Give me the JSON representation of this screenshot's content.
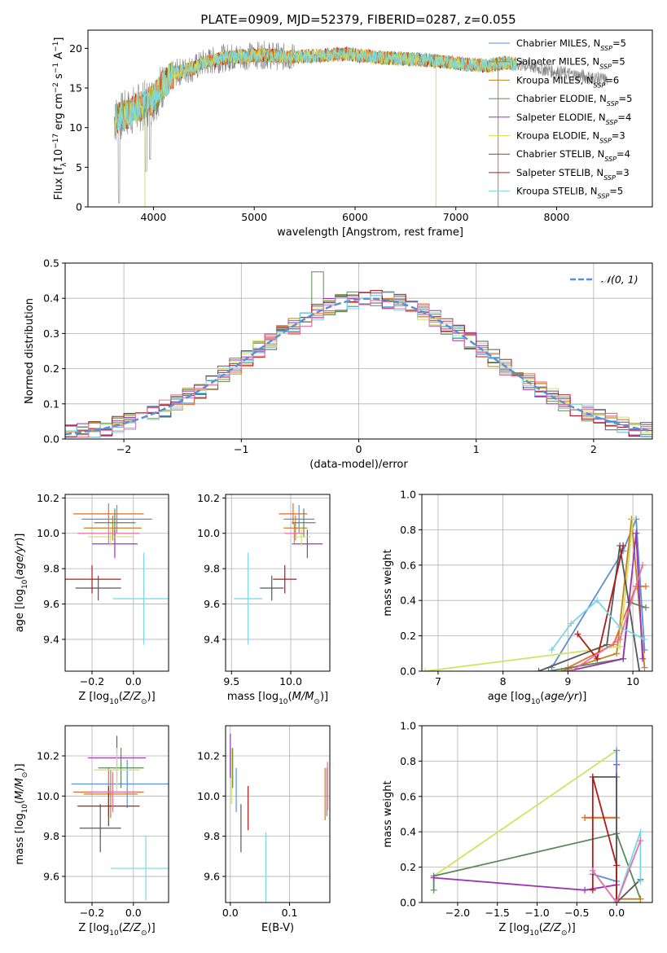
{
  "title": "PLATE=0909, MJD=52379, FIBERID=0287, z=0.055",
  "colors": {
    "Chabrier MILES": "#5b8fd6",
    "Salpeter MILES": "#e76a25",
    "Kroupa MILES": "#c6801c",
    "Chabrier ELODIE": "#5a8a5c",
    "Salpeter ELODIE": "#9a34b6",
    "Kroupa ELODIE": "#cfe35c",
    "Chabrier STELIB": "#585858",
    "Salpeter STELIB": "#b01a1a",
    "Kroupa STELIB": "#78d8e2",
    "pink": "#e870a8",
    "spectrum": "#808080",
    "gaussian": "#5b8fd6"
  },
  "chart_data": [
    {
      "type": "line",
      "name": "spectrum",
      "xlabel": "wavelength [Angstrom, rest frame]",
      "ylabel": "Flux [f_λ10^-17 erg cm^-2 s^-1 A^-1]",
      "xlim": [
        3350,
        8950
      ],
      "ylim": [
        0,
        22.3
      ],
      "xticks": [
        4000,
        5000,
        6000,
        7000,
        8000
      ],
      "yticks": [
        0,
        5,
        10,
        15,
        20
      ],
      "legend_position": "right",
      "legend": [
        {
          "name": "Chabrier MILES",
          "nssp": "5"
        },
        {
          "name": "Salpeter MILES",
          "nssp": "5"
        },
        {
          "name": "Kroupa MILES",
          "nssp": "6"
        },
        {
          "name": "Chabrier ELODIE",
          "nssp": "5"
        },
        {
          "name": "Salpeter ELODIE",
          "nssp": "4"
        },
        {
          "name": "Kroupa ELODIE",
          "nssp": "3"
        },
        {
          "name": "Chabrier STELIB",
          "nssp": "4"
        },
        {
          "name": "Salpeter STELIB",
          "nssp": "3"
        },
        {
          "name": "Kroupa STELIB",
          "nssp": "5"
        }
      ],
      "continuum": {
        "x": [
          3610,
          3700,
          3800,
          3900,
          4000,
          4100,
          4200,
          4300,
          4400,
          4500,
          4700,
          4900,
          5100,
          5300,
          5500,
          5700,
          5900,
          6100,
          6300,
          6500,
          6700,
          6900,
          7100,
          7300,
          7500,
          7700,
          7900,
          8100,
          8300,
          8500
        ],
        "y": [
          11.0,
          11.5,
          12.2,
          12.8,
          13.6,
          15.5,
          16.8,
          17.2,
          17.5,
          18.2,
          18.8,
          19.0,
          19.2,
          18.9,
          19.0,
          19.1,
          19.3,
          19.0,
          18.8,
          18.7,
          18.5,
          18.3,
          18.0,
          17.8,
          18.2,
          17.8,
          17.3,
          16.8,
          16.4,
          16.0
        ]
      },
      "model_ranges": [
        3620,
        7600
      ]
    },
    {
      "type": "bar",
      "name": "residuals",
      "xlabel": "(data-model)/error",
      "ylabel": "Normed distribution",
      "xlim": [
        -2.5,
        2.5
      ],
      "ylim": [
        0,
        0.5
      ],
      "xticks": [
        -2,
        -1,
        0,
        1,
        2
      ],
      "yticks": [
        0.0,
        0.1,
        0.2,
        0.3,
        0.4,
        0.5
      ],
      "legend_label": "𝒩(0, 1)",
      "bin_width": 0.1,
      "bin_start": -2.5,
      "gaussian": {
        "mean": 0.1,
        "sigma": 1.0
      }
    },
    {
      "type": "scatter",
      "name": "age-vs-Z",
      "xlabel": "Z [log10(Z/Z⊙)]",
      "ylabel": "age  [log10(age/yr)]",
      "xlim": [
        -0.33,
        0.17
      ],
      "ylim": [
        9.22,
        10.22
      ],
      "xticks": [
        -0.2,
        0.0
      ],
      "yticks": [
        9.4,
        9.6,
        9.8,
        10.0,
        10.2
      ],
      "points": [
        {
          "model": "Chabrier MILES",
          "x": -0.08,
          "y": 10.08,
          "xerr": 0.17,
          "yerr": 0.08
        },
        {
          "model": "Salpeter MILES",
          "x": -0.12,
          "y": 10.11,
          "xerr": 0.17,
          "yerr": 0.06
        },
        {
          "model": "Kroupa MILES",
          "x": -0.1,
          "y": 10.03,
          "xerr": 0.14,
          "yerr": 0.07
        },
        {
          "model": "Chabrier ELODIE",
          "x": -0.09,
          "y": 10.06,
          "xerr": 0.1,
          "yerr": 0.08
        },
        {
          "model": "Salpeter ELODIE",
          "x": -0.09,
          "y": 9.94,
          "xerr": 0.11,
          "yerr": 0.08
        },
        {
          "model": "Kroupa ELODIE",
          "x": -0.11,
          "y": 9.98,
          "xerr": 0.11,
          "yerr": 0.05
        },
        {
          "model": "Chabrier STELIB",
          "x": -0.17,
          "y": 9.69,
          "xerr": 0.11,
          "yerr": 0.07
        },
        {
          "model": "Salpeter STELIB",
          "x": -0.2,
          "y": 9.74,
          "xerr": 0.14,
          "yerr": 0.08
        },
        {
          "model": "Kroupa STELIB",
          "x": 0.05,
          "y": 9.63,
          "xerr": 0.15,
          "yerr": 0.26
        },
        {
          "model": "pink",
          "x": -0.12,
          "y": 10.0,
          "xerr": 0.15,
          "yerr": 0.06
        }
      ]
    },
    {
      "type": "scatter",
      "name": "age-vs-mass",
      "xlabel": "mass [log10(M/M⊙)]",
      "ylabel": "",
      "xlim": [
        9.45,
        10.33
      ],
      "ylim": [
        9.22,
        10.22
      ],
      "xticks": [
        9.5,
        10.0
      ],
      "yticks": [
        9.4,
        9.6,
        9.8,
        10.0,
        10.2
      ],
      "points": [
        {
          "model": "Chabrier MILES",
          "x": 10.07,
          "y": 10.08,
          "xerr": 0.13,
          "yerr": 0.08
        },
        {
          "model": "Salpeter MILES",
          "x": 10.02,
          "y": 10.11,
          "xerr": 0.12,
          "yerr": 0.06
        },
        {
          "model": "Kroupa MILES",
          "x": 10.04,
          "y": 10.03,
          "xerr": 0.1,
          "yerr": 0.07
        },
        {
          "model": "Chabrier ELODIE",
          "x": 10.11,
          "y": 10.06,
          "xerr": 0.1,
          "yerr": 0.08
        },
        {
          "model": "Salpeter ELODIE",
          "x": 10.14,
          "y": 9.94,
          "xerr": 0.13,
          "yerr": 0.08
        },
        {
          "model": "Kroupa ELODIE",
          "x": 10.09,
          "y": 9.98,
          "xerr": 0.08,
          "yerr": 0.05
        },
        {
          "model": "Chabrier STELIB",
          "x": 9.84,
          "y": 9.69,
          "xerr": 0.1,
          "yerr": 0.07
        },
        {
          "model": "Salpeter STELIB",
          "x": 9.95,
          "y": 9.74,
          "xerr": 0.1,
          "yerr": 0.08
        },
        {
          "model": "Kroupa STELIB",
          "x": 9.64,
          "y": 9.63,
          "xerr": 0.12,
          "yerr": 0.26
        },
        {
          "model": "pink",
          "x": 10.03,
          "y": 10.0,
          "xerr": 0.08,
          "yerr": 0.06
        }
      ]
    },
    {
      "type": "line",
      "name": "weight-vs-age",
      "xlabel": "age  [log10(age/yr)]",
      "ylabel": "mass weight",
      "xlim": [
        6.75,
        10.3
      ],
      "ylim": [
        0,
        1.0
      ],
      "xticks": [
        7,
        8,
        9,
        10
      ],
      "yticks": [
        0.0,
        0.2,
        0.4,
        0.6,
        0.8,
        1.0
      ],
      "series": [
        {
          "model": "Chabrier MILES",
          "x": [
            8.75,
            9.85,
            10.05,
            10.18
          ],
          "y": [
            0.02,
            0.68,
            0.86,
            0.12
          ]
        },
        {
          "model": "Salpeter MILES",
          "x": [
            9.0,
            9.7,
            10.05,
            10.2
          ],
          "y": [
            0.02,
            0.15,
            0.48,
            0.48
          ]
        },
        {
          "model": "Kroupa MILES",
          "x": [
            8.9,
            9.75,
            9.98,
            10.18
          ],
          "y": [
            0.0,
            0.1,
            0.86,
            0.02
          ]
        },
        {
          "model": "Chabrier ELODIE",
          "x": [
            8.7,
            9.85,
            9.95,
            10.2
          ],
          "y": [
            0.0,
            0.07,
            0.39,
            0.36
          ]
        },
        {
          "model": "Salpeter ELODIE",
          "x": [
            9.0,
            9.85,
            10.05,
            10.15
          ],
          "y": [
            0.0,
            0.07,
            0.78,
            0.07
          ]
        },
        {
          "model": "Kroupa ELODIE",
          "x": [
            6.8,
            9.8,
            10.0
          ],
          "y": [
            0.0,
            0.14,
            0.86
          ]
        },
        {
          "model": "Chabrier STELIB",
          "x": [
            8.55,
            9.6,
            9.8,
            10.1
          ],
          "y": [
            0.0,
            0.15,
            0.71,
            0.0
          ]
        },
        {
          "model": "Salpeter STELIB",
          "x": [
            9.15,
            9.45,
            9.85
          ],
          "y": [
            0.21,
            0.07,
            0.71
          ]
        },
        {
          "model": "Kroupa STELIB",
          "x": [
            8.75,
            9.05,
            9.45,
            9.8,
            10.18
          ],
          "y": [
            0.12,
            0.27,
            0.4,
            0.25,
            0.18
          ]
        },
        {
          "model": "pink",
          "x": [
            9.05,
            9.8,
            10.15
          ],
          "y": [
            0.0,
            0.18,
            0.6
          ]
        }
      ]
    },
    {
      "type": "scatter",
      "name": "mass-vs-Z",
      "xlabel": "Z [log10(Z/Z⊙)]",
      "ylabel": "mass [log10(M/M⊙)]",
      "xlim": [
        -0.33,
        0.17
      ],
      "ylim": [
        9.47,
        10.35
      ],
      "xticks": [
        -0.2,
        0.0
      ],
      "yticks": [
        9.6,
        9.8,
        10.0,
        10.2
      ],
      "points": [
        {
          "model": "Chabrier MILES",
          "x": -0.03,
          "y": 10.06,
          "xerr": 0.27,
          "yerr": 0.12
        },
        {
          "model": "Salpeter MILES",
          "x": -0.12,
          "y": 10.02,
          "xerr": 0.17,
          "yerr": 0.12
        },
        {
          "model": "Kroupa MILES",
          "x": -0.11,
          "y": 10.01,
          "xerr": 0.13,
          "yerr": 0.12
        },
        {
          "model": "Chabrier ELODIE",
          "x": -0.06,
          "y": 10.14,
          "xerr": 0.11,
          "yerr": 0.1
        },
        {
          "model": "Salpeter ELODIE",
          "x": -0.08,
          "y": 10.19,
          "xerr": 0.14,
          "yerr": 0.11
        },
        {
          "model": "Kroupa ELODIE",
          "x": -0.08,
          "y": 10.13,
          "xerr": 0.11,
          "yerr": 0.11
        },
        {
          "model": "Chabrier STELIB",
          "x": -0.16,
          "y": 9.84,
          "xerr": 0.1,
          "yerr": 0.12
        },
        {
          "model": "Salpeter STELIB",
          "x": -0.12,
          "y": 9.95,
          "xerr": 0.15,
          "yerr": 0.1
        },
        {
          "model": "Kroupa STELIB",
          "x": 0.06,
          "y": 9.64,
          "xerr": 0.17,
          "yerr": 0.16
        },
        {
          "model": "pink",
          "x": -0.1,
          "y": 10.02,
          "xerr": 0.12,
          "yerr": 0.1
        }
      ]
    },
    {
      "type": "scatter",
      "name": "mass-vs-EBV",
      "xlabel": "E(B-V)",
      "ylabel": "",
      "xlim": [
        -0.008,
        0.168
      ],
      "ylim": [
        9.47,
        10.35
      ],
      "xticks": [
        0.0,
        0.1
      ],
      "yticks": [
        9.6,
        9.8,
        10.0,
        10.2
      ],
      "points": [
        {
          "model": "Chabrier MILES",
          "x": 0.01,
          "y": 10.03,
          "yerr": 0.11
        },
        {
          "model": "Salpeter MILES",
          "x": 0.163,
          "y": 10.02,
          "yerr": 0.12
        },
        {
          "model": "Kroupa MILES",
          "x": 0.16,
          "y": 10.01,
          "yerr": 0.13
        },
        {
          "model": "Chabrier ELODIE",
          "x": 0.004,
          "y": 10.14,
          "yerr": 0.1
        },
        {
          "model": "Salpeter ELODIE",
          "x": 0.0,
          "y": 10.2,
          "yerr": 0.11
        },
        {
          "model": "Kroupa ELODIE",
          "x": 0.002,
          "y": 10.1,
          "yerr": 0.14
        },
        {
          "model": "Chabrier STELIB",
          "x": 0.018,
          "y": 9.84,
          "yerr": 0.12
        },
        {
          "model": "Salpeter STELIB",
          "x": 0.03,
          "y": 9.94,
          "yerr": 0.11
        },
        {
          "model": "Kroupa STELIB",
          "x": 0.06,
          "y": 9.64,
          "yerr": 0.18
        },
        {
          "model": "pink",
          "x": 0.164,
          "y": 10.05,
          "yerr": 0.12
        }
      ]
    },
    {
      "type": "line",
      "name": "weight-vs-Z",
      "xlabel": "Z [log10(Z/Z⊙)]",
      "ylabel": "mass weight",
      "xlim": [
        -2.45,
        0.45
      ],
      "ylim": [
        0,
        1.0
      ],
      "xticks": [
        -2.0,
        -1.5,
        -1.0,
        -0.5,
        0.0
      ],
      "yticks": [
        0.0,
        0.2,
        0.4,
        0.6,
        0.8,
        1.0
      ],
      "series": [
        {
          "model": "Kroupa ELODIE",
          "x": [
            -2.3,
            0.0,
            0.0,
            0.3
          ],
          "y": [
            0.15,
            0.86,
            0.0,
            0.0
          ]
        },
        {
          "model": "Chabrier ELODIE",
          "x": [
            -2.3,
            -2.3,
            0.0,
            0.3
          ],
          "y": [
            0.07,
            0.15,
            0.39,
            0.02
          ]
        },
        {
          "model": "Salpeter ELODIE",
          "x": [
            -2.3,
            -0.4,
            0.0,
            0.0
          ],
          "y": [
            0.14,
            0.07,
            0.1,
            0.78
          ]
        },
        {
          "model": "Kroupa MILES",
          "x": [
            -0.4,
            0.0,
            0.0,
            0.3
          ],
          "y": [
            0.48,
            0.48,
            0.02,
            0.02
          ]
        },
        {
          "model": "Salpeter MILES",
          "x": [
            -0.4,
            0.0
          ],
          "y": [
            0.48,
            0.48
          ]
        },
        {
          "model": "Chabrier MILES",
          "x": [
            -0.3,
            0.0,
            0.0
          ],
          "y": [
            0.16,
            0.12,
            0.86
          ]
        },
        {
          "model": "Chabrier STELIB",
          "x": [
            -0.3,
            0.0,
            0.0,
            0.3
          ],
          "y": [
            0.71,
            0.71,
            0.0,
            0.13
          ]
        },
        {
          "model": "Salpeter STELIB",
          "x": [
            -0.3,
            -0.3,
            0.0,
            0.0
          ],
          "y": [
            0.07,
            0.71,
            0.21,
            0.0
          ]
        },
        {
          "model": "Kroupa STELIB",
          "x": [
            -0.3,
            0.0,
            0.3,
            0.3
          ],
          "y": [
            0.18,
            0.0,
            0.4,
            0.12
          ]
        },
        {
          "model": "pink",
          "x": [
            -0.3,
            0.0,
            0.3
          ],
          "y": [
            0.18,
            0.0,
            0.35
          ]
        }
      ]
    }
  ]
}
